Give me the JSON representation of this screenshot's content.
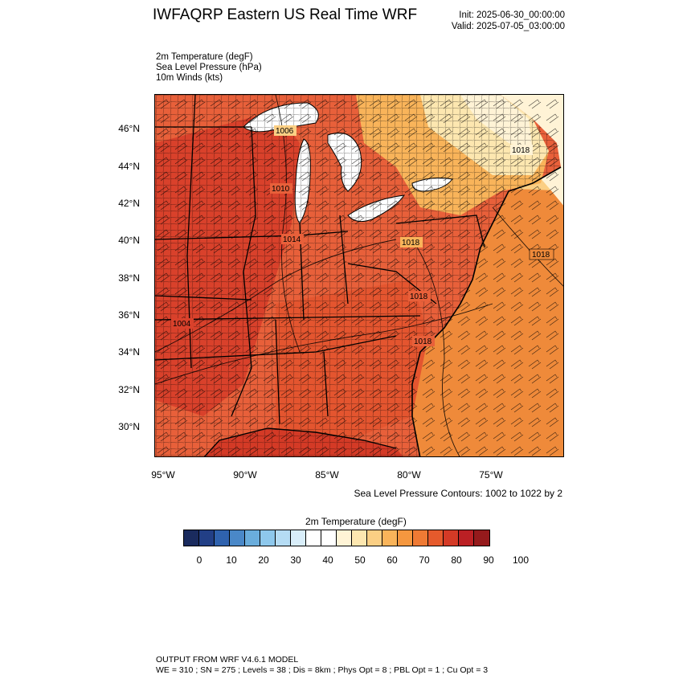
{
  "header": {
    "title": "IWFAQRP Eastern US Real Time WRF",
    "init": "Init: 2025-06-30_00:00:00",
    "valid": "Valid: 2025-07-05_03:00:00"
  },
  "variables": [
    "2m Temperature   (degF)",
    "Sea Level Pressure   (hPa)",
    "10m Winds   (kts)"
  ],
  "map": {
    "lat_labels": [
      "46°N",
      "44°N",
      "42°N",
      "40°N",
      "38°N",
      "36°N",
      "34°N",
      "32°N",
      "30°N"
    ],
    "lon_labels": [
      "95°W",
      "90°W",
      "85°W",
      "80°W",
      "75°W"
    ],
    "pressure_labels": [
      "1006",
      "1010",
      "1014",
      "1018",
      "1018",
      "1018",
      "1018",
      "1018",
      "1004"
    ],
    "contour_note": "Sea Level Pressure Contours: 1002 to 1022 by 2",
    "colors": {
      "land_hot": "#d9412b",
      "land_warm": "#e8603a",
      "orange": "#f08c3a",
      "light_orange": "#f9b45a",
      "pale": "#fde7b0",
      "cream": "#fff3d6",
      "lake": "#ffffff",
      "ocean": "#ef8a3a"
    }
  },
  "colorbar": {
    "title": "2m Temperature  (degF)",
    "colors": [
      "#1a2b5e",
      "#223f86",
      "#2f62ae",
      "#4a88c8",
      "#6aaddc",
      "#8ec8ec",
      "#b5dcf4",
      "#d9eefa",
      "#ffffff",
      "#ffffff",
      "#fff4d6",
      "#fde7b0",
      "#fbcf84",
      "#f9b45a",
      "#f5973f",
      "#ef7a34",
      "#e55a2c",
      "#d43a26",
      "#bb2024",
      "#951a1c"
    ],
    "ticks": [
      "0",
      "10",
      "20",
      "30",
      "40",
      "50",
      "60",
      "70",
      "80",
      "90",
      "100"
    ]
  },
  "footer": {
    "line1": "OUTPUT FROM WRF V4.6.1 MODEL",
    "line2": "WE = 310 ; SN = 275 ; Levels = 38 ; Dis = 8km ; Phys Opt = 8 ; PBL Opt = 1 ; Cu Opt = 3"
  }
}
